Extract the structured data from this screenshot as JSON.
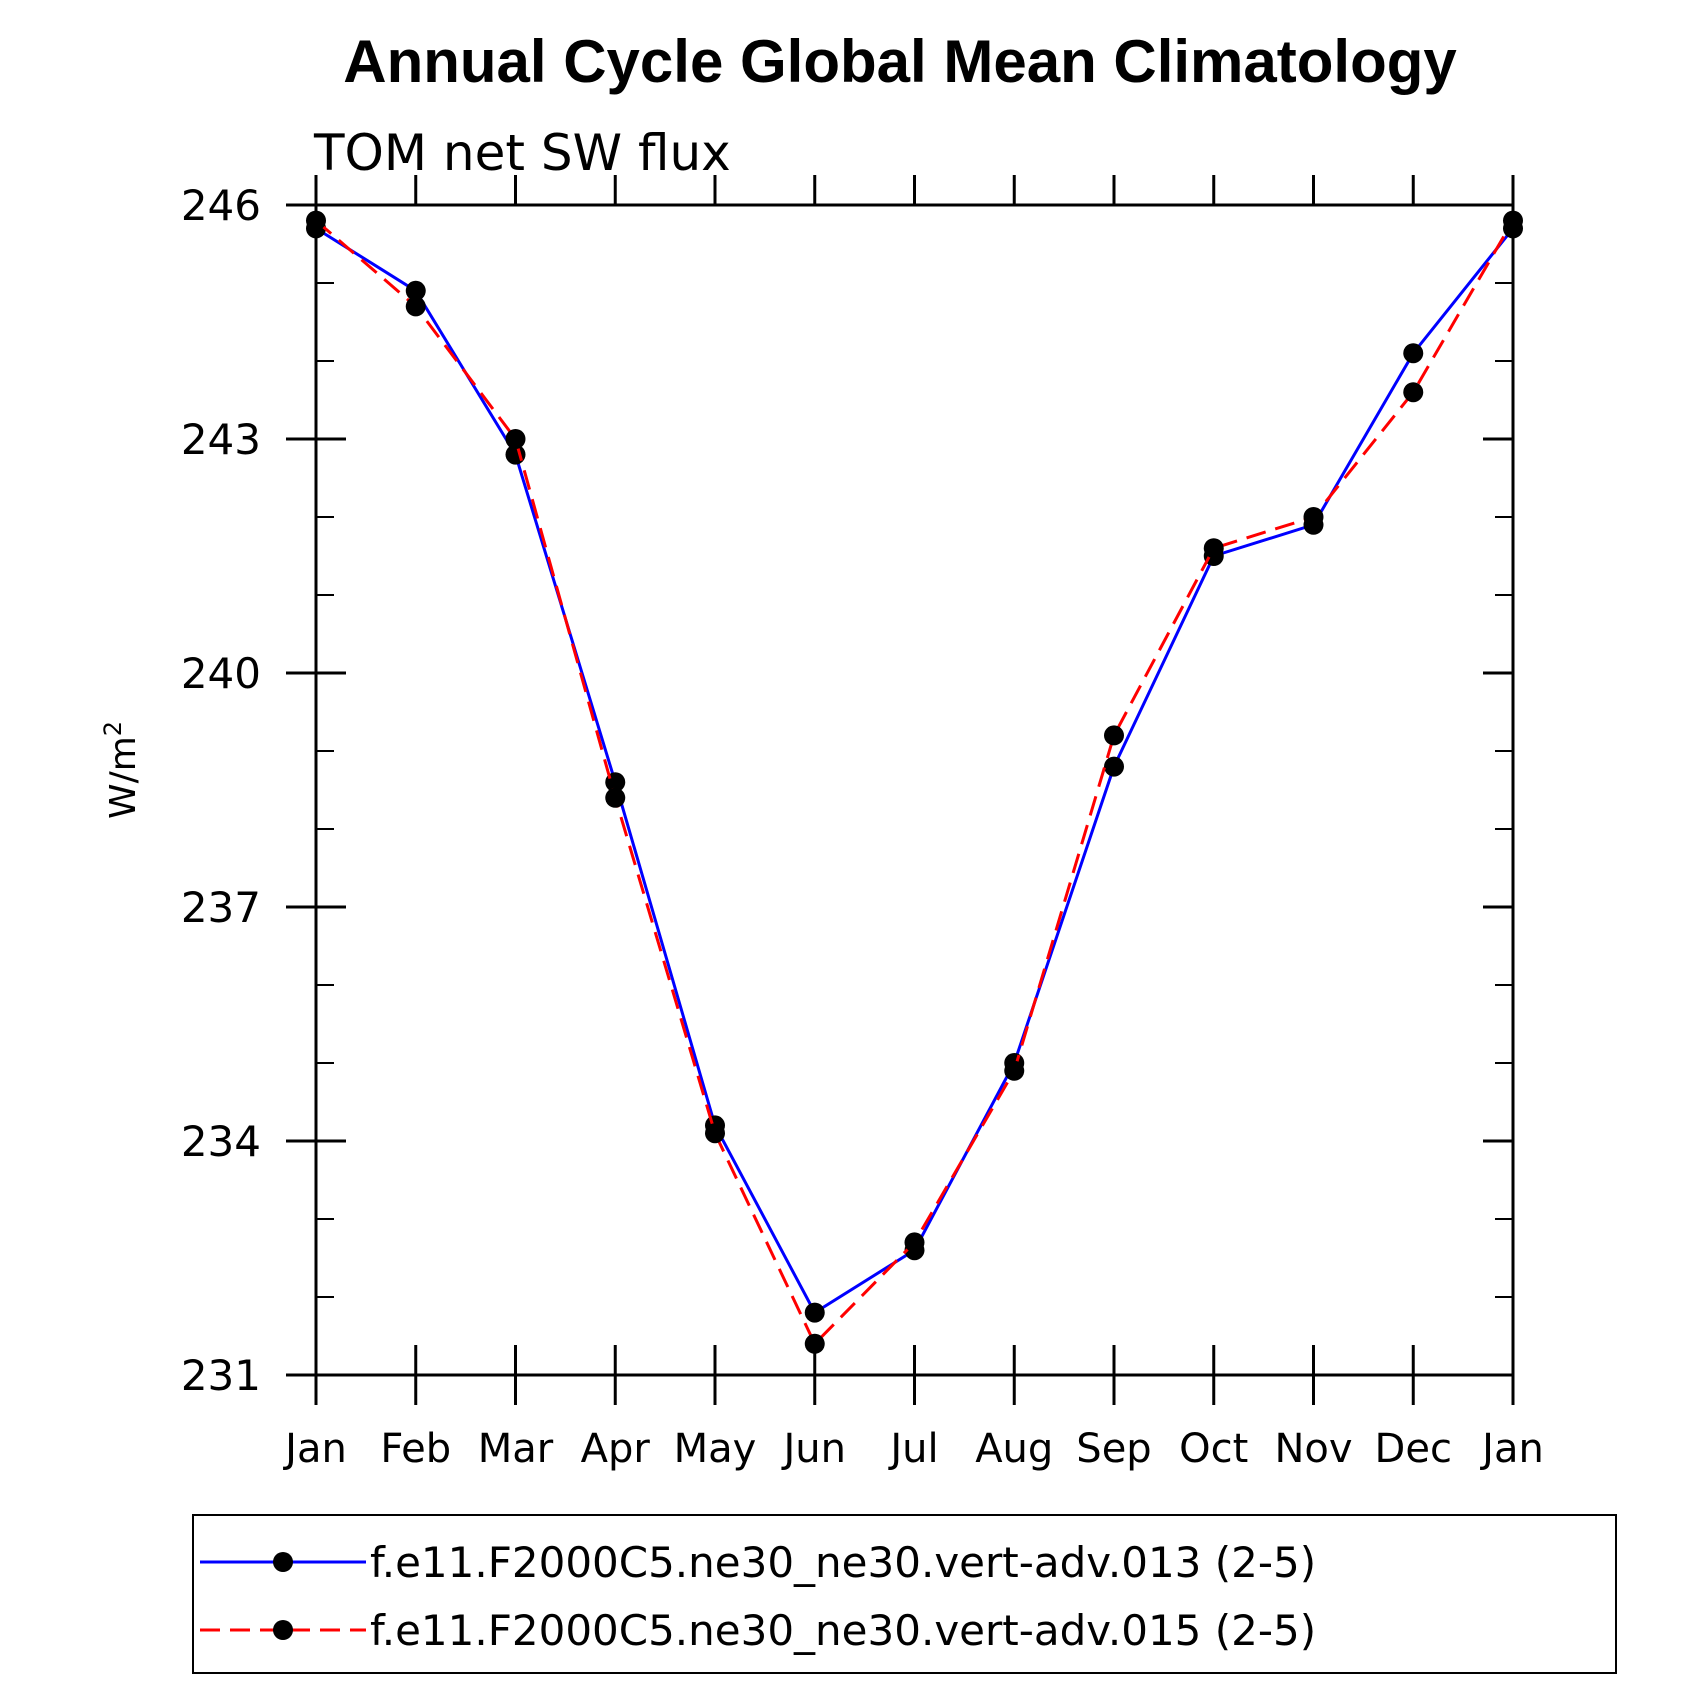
{
  "chart_data": {
    "type": "line",
    "title": "Annual Cycle Global Mean Climatology",
    "subtitle": "TOM net SW flux",
    "ylabel": "W/m",
    "ylabel_sup": "2",
    "categories": [
      "Jan",
      "Feb",
      "Mar",
      "Apr",
      "May",
      "Jun",
      "Jul",
      "Aug",
      "Sep",
      "Oct",
      "Nov",
      "Dec",
      "Jan"
    ],
    "yticks": [
      "246",
      "243",
      "240",
      "237",
      "234",
      "231"
    ],
    "ylim": [
      231,
      246
    ],
    "series": [
      {
        "name": "f.e11.F2000C5.ne30_ne30.vert-adv.013 (2-5)",
        "color": "#0000ff",
        "dash": "solid",
        "values": [
          245.7,
          244.9,
          242.8,
          238.6,
          234.2,
          231.8,
          232.6,
          235.0,
          238.8,
          241.5,
          241.9,
          244.1,
          245.7
        ]
      },
      {
        "name": "f.e11.F2000C5.ne30_ne30.vert-adv.015 (2-5)",
        "color": "#ff0000",
        "dash": "dashed",
        "values": [
          245.8,
          244.7,
          243.0,
          238.4,
          234.1,
          231.4,
          232.7,
          234.9,
          239.2,
          241.6,
          242.0,
          243.6,
          245.8
        ]
      }
    ],
    "legend_position": "bottom",
    "grid": false
  }
}
